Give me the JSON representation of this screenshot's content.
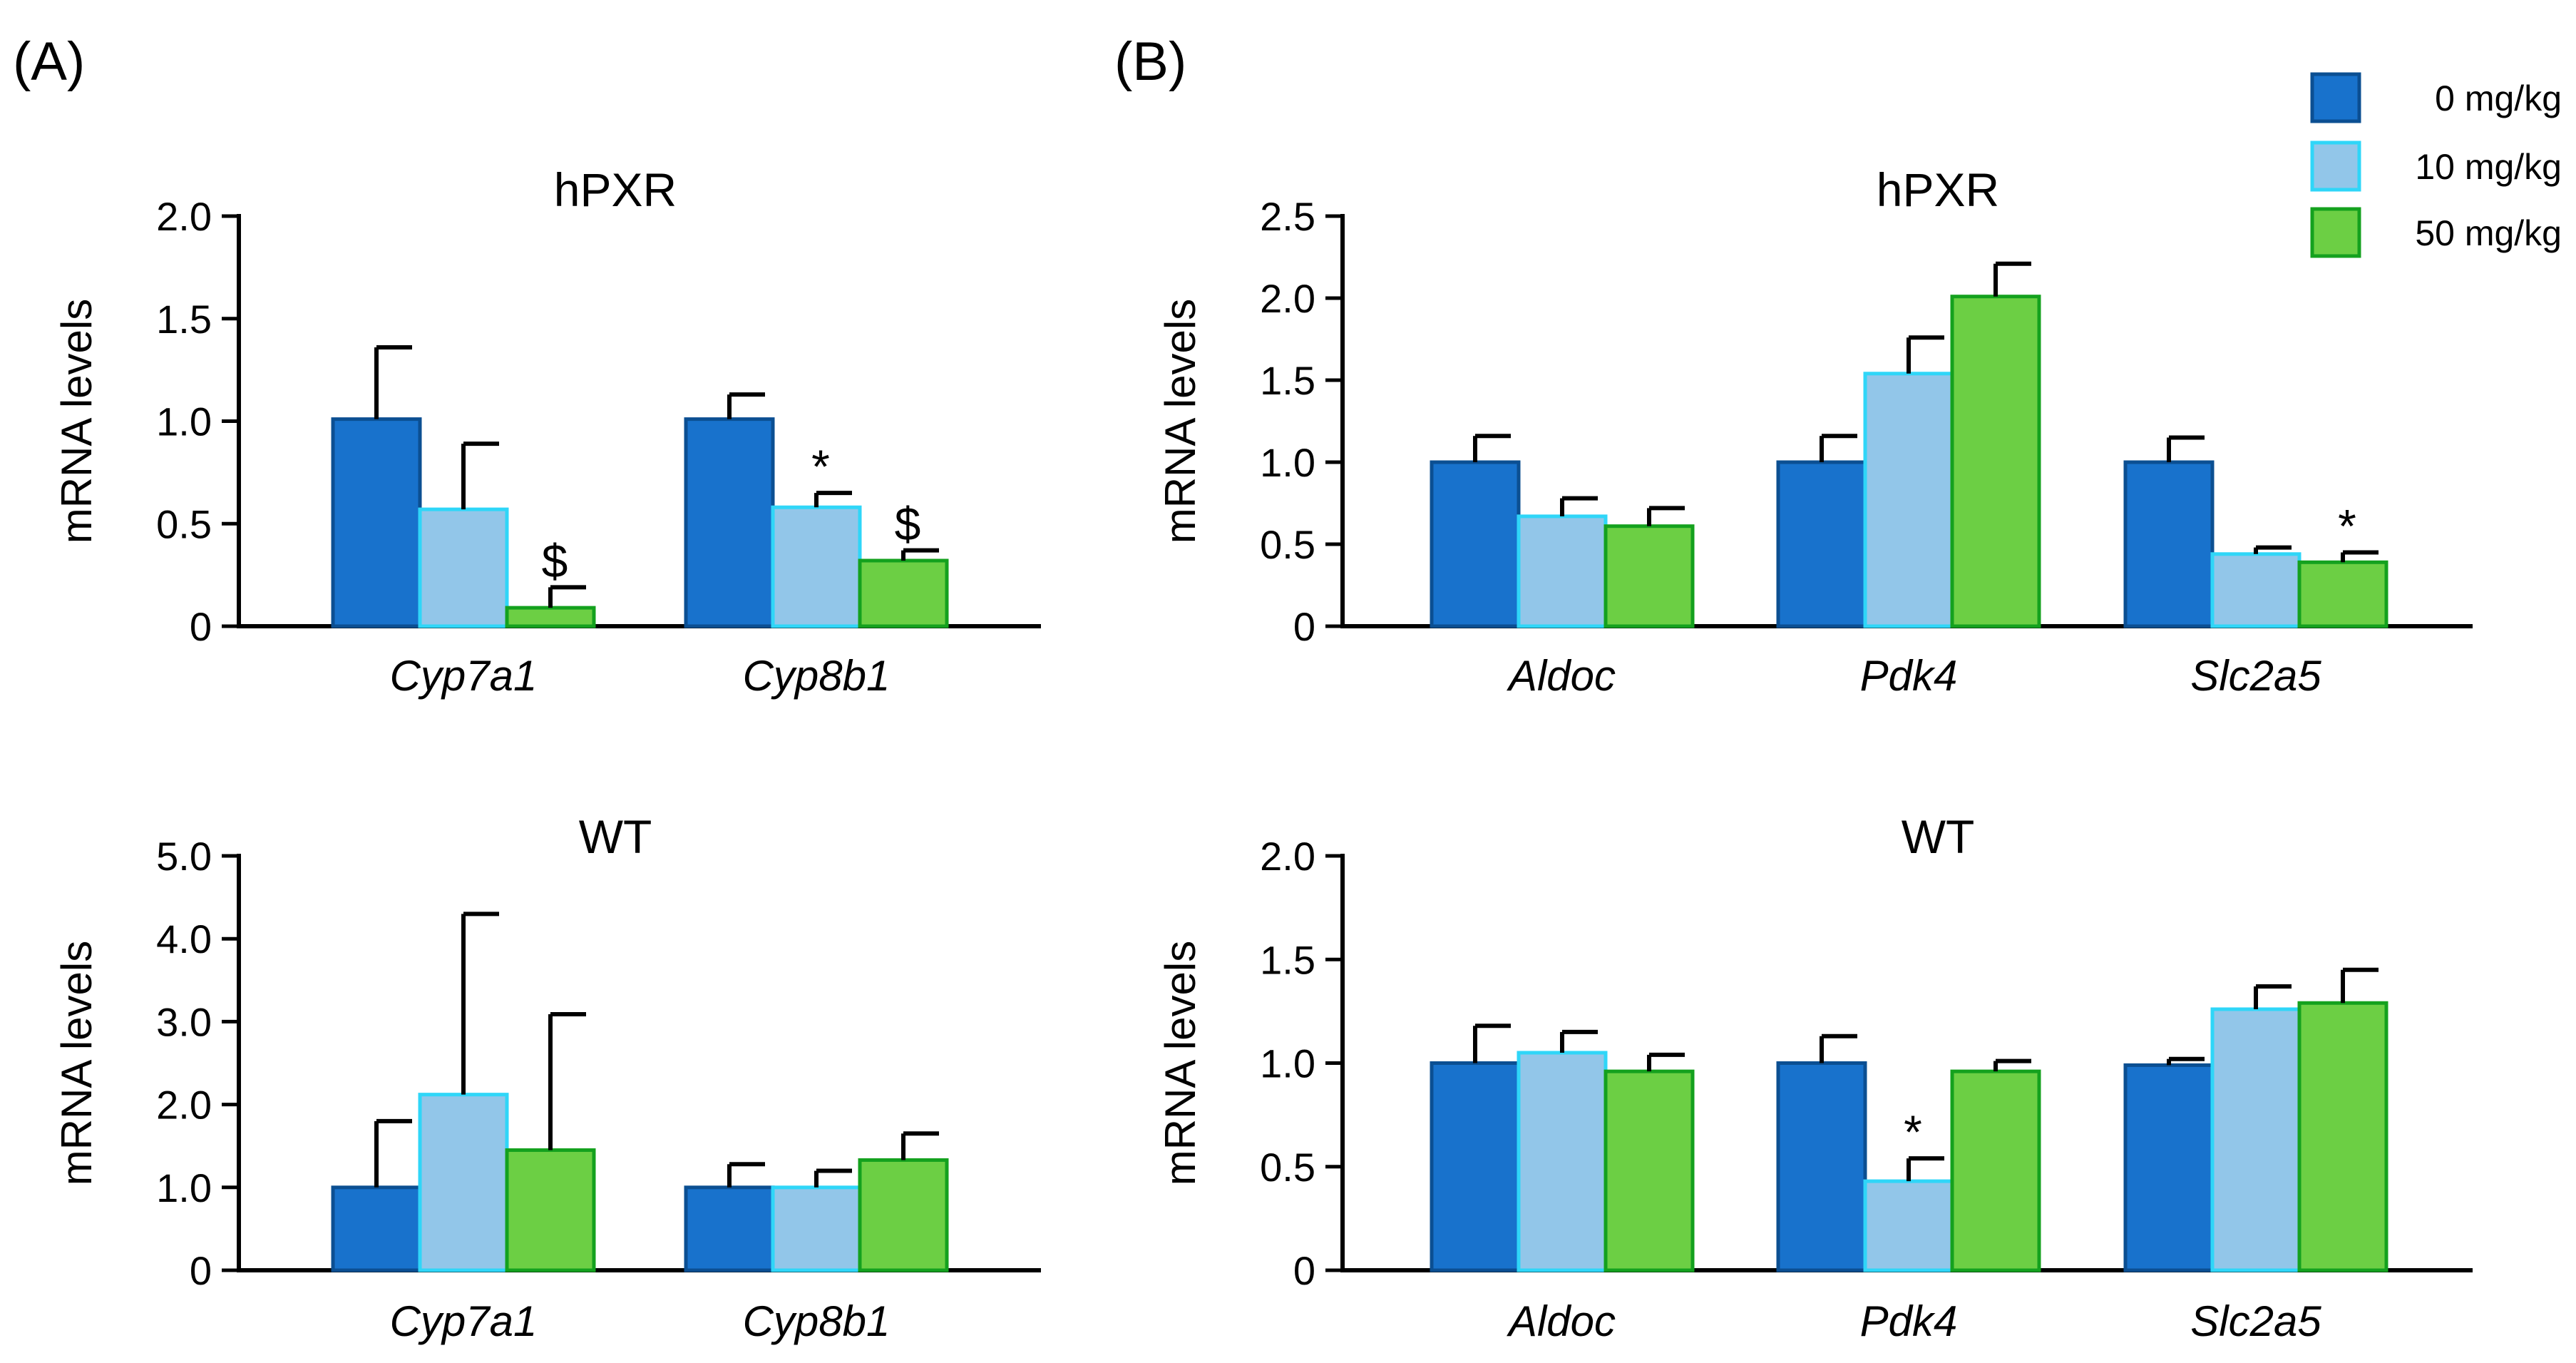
{
  "panels": {
    "a": "(A)",
    "b": "(B)"
  },
  "legend": [
    {
      "label": "0 mg/kg",
      "fill": "#1872CC",
      "stroke": "#0B4F92"
    },
    {
      "label": "10 mg/kg",
      "fill": "#92C6E9",
      "stroke": "#2FD6F8"
    },
    {
      "label": "50 mg/kg",
      "fill": "#6CCF44",
      "stroke": "#14A11E"
    }
  ],
  "chart_data": [
    {
      "id": "a-hpxr",
      "type": "bar",
      "title": "hPXR",
      "ylabel": "mRNA levels",
      "ylim": [
        0,
        2.0
      ],
      "yticks": [
        0,
        0.5,
        1.0,
        1.5,
        2.0
      ],
      "ytick_labels": [
        "0",
        "0.5",
        "1.0",
        "1.5",
        "2.0"
      ],
      "categories": [
        "Cyp7a1",
        "Cyp8b1"
      ],
      "series": [
        {
          "name": "0 mg/kg",
          "values": [
            1.01,
            1.01
          ],
          "errors": [
            0.35,
            0.12
          ],
          "markers": [
            "",
            ""
          ]
        },
        {
          "name": "10 mg/kg",
          "values": [
            0.57,
            0.58
          ],
          "errors": [
            0.32,
            0.07
          ],
          "markers": [
            "",
            "*"
          ]
        },
        {
          "name": "50 mg/kg",
          "values": [
            0.09,
            0.32
          ],
          "errors": [
            0.1,
            0.05
          ],
          "markers": [
            "$",
            "$"
          ]
        }
      ]
    },
    {
      "id": "a-wt",
      "type": "bar",
      "title": "WT",
      "ylabel": "mRNA levels",
      "ylim": [
        0,
        5.0
      ],
      "yticks": [
        0,
        1,
        2,
        3,
        4,
        5
      ],
      "ytick_labels": [
        "0",
        "1.0",
        "2.0",
        "3.0",
        "4.0",
        "5.0"
      ],
      "categories": [
        "Cyp7a1",
        "Cyp8b1"
      ],
      "series": [
        {
          "name": "0 mg/kg",
          "values": [
            1.0,
            1.0
          ],
          "errors": [
            0.8,
            0.28
          ],
          "markers": [
            "",
            ""
          ]
        },
        {
          "name": "10 mg/kg",
          "values": [
            2.12,
            1.0
          ],
          "errors": [
            2.18,
            0.2
          ],
          "markers": [
            "",
            ""
          ]
        },
        {
          "name": "50 mg/kg",
          "values": [
            1.45,
            1.33
          ],
          "errors": [
            1.64,
            0.32
          ],
          "markers": [
            "",
            ""
          ]
        }
      ]
    },
    {
      "id": "b-hpxr",
      "type": "bar",
      "title": "hPXR",
      "ylabel": "mRNA levels",
      "ylim": [
        0,
        2.5
      ],
      "yticks": [
        0,
        0.5,
        1.0,
        1.5,
        2.0,
        2.5
      ],
      "ytick_labels": [
        "0",
        "0.5",
        "1.0",
        "1.5",
        "2.0",
        "2.5"
      ],
      "categories": [
        "Aldoc",
        "Pdk4",
        "Slc2a5"
      ],
      "series": [
        {
          "name": "0 mg/kg",
          "values": [
            1.0,
            1.0,
            1.0
          ],
          "errors": [
            0.16,
            0.16,
            0.15
          ],
          "markers": [
            "",
            "",
            ""
          ]
        },
        {
          "name": "10 mg/kg",
          "values": [
            0.67,
            1.54,
            0.44
          ],
          "errors": [
            0.11,
            0.22,
            0.04
          ],
          "markers": [
            "",
            "",
            ""
          ]
        },
        {
          "name": "50 mg/kg",
          "values": [
            0.61,
            2.01,
            0.39
          ],
          "errors": [
            0.11,
            0.2,
            0.06
          ],
          "markers": [
            "",
            "",
            "*"
          ]
        }
      ]
    },
    {
      "id": "b-wt",
      "type": "bar",
      "title": "WT",
      "ylabel": "mRNA levels",
      "ylim": [
        0,
        2.0
      ],
      "yticks": [
        0,
        0.5,
        1.0,
        1.5,
        2.0
      ],
      "ytick_labels": [
        "0",
        "0.5",
        "1.0",
        "1.5",
        "2.0"
      ],
      "categories": [
        "Aldoc",
        "Pdk4",
        "Slc2a5"
      ],
      "series": [
        {
          "name": "0 mg/kg",
          "values": [
            1.0,
            1.0,
            0.99
          ],
          "errors": [
            0.18,
            0.13,
            0.03
          ],
          "markers": [
            "",
            "",
            ""
          ]
        },
        {
          "name": "10 mg/kg",
          "values": [
            1.05,
            0.43,
            1.26
          ],
          "errors": [
            0.1,
            0.11,
            0.11
          ],
          "markers": [
            "",
            "*",
            ""
          ]
        },
        {
          "name": "50 mg/kg",
          "values": [
            0.96,
            0.96,
            1.29
          ],
          "errors": [
            0.08,
            0.05,
            0.16
          ],
          "markers": [
            "",
            "",
            ""
          ]
        }
      ]
    }
  ]
}
